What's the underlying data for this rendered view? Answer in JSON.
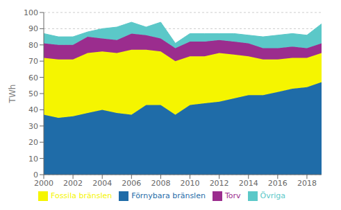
{
  "chart_data": {
    "type": "area",
    "stacked": true,
    "x": [
      2000,
      2001,
      2002,
      2003,
      2004,
      2005,
      2006,
      2007,
      2008,
      2009,
      2010,
      2011,
      2012,
      2013,
      2014,
      2015,
      2016,
      2017,
      2018,
      2019
    ],
    "series": [
      {
        "name": "Förnybara bränslen",
        "color": "#1F6CA8",
        "values": [
          37,
          35,
          36,
          38,
          40,
          38,
          37,
          43,
          43,
          37,
          43,
          44,
          45,
          47,
          49,
          49,
          51,
          53,
          54,
          57
        ]
      },
      {
        "name": "Fossila bränslen",
        "color": "#F5F500",
        "values": [
          35,
          36,
          35,
          37,
          36,
          37,
          40,
          34,
          33,
          33,
          30,
          29,
          30,
          27,
          24,
          22,
          20,
          19,
          18,
          18
        ]
      },
      {
        "name": "Torv",
        "color": "#9B2D8E",
        "values": [
          9,
          9,
          9,
          10,
          8,
          8,
          10,
          9,
          8,
          8,
          9,
          9,
          8,
          8,
          8,
          7,
          7,
          7,
          6,
          6
        ]
      },
      {
        "name": "Övriga",
        "color": "#5BC8C8",
        "values": [
          6,
          5,
          5,
          3,
          6,
          8,
          7,
          5,
          10,
          3,
          5,
          5,
          4,
          5,
          5,
          7,
          8,
          8,
          8,
          12
        ]
      }
    ],
    "ylabel": "TWh",
    "xlim": [
      2000,
      2019
    ],
    "xticks": [
      2000,
      2002,
      2004,
      2006,
      2008,
      2010,
      2012,
      2014,
      2016,
      2018
    ],
    "ylim": [
      0,
      100
    ],
    "yticks": [
      0,
      10,
      20,
      30,
      40,
      50,
      60,
      70,
      80,
      90,
      100
    ],
    "grid": "y",
    "legend": "bottom"
  }
}
